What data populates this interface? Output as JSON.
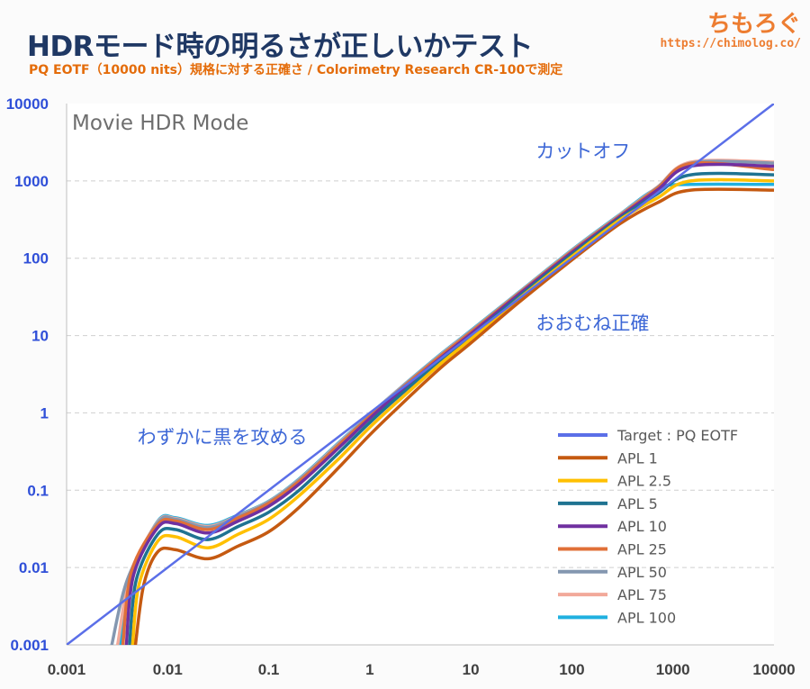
{
  "header": {
    "title": "HDRモード時の明るさが正しいかテスト",
    "subtitle": "PQ EOTF（10000 nits）規格に対する正確さ / Colorimetry Research CR-100で測定",
    "brand": "ちもろぐ",
    "brand_url": "https://chimolog.co/"
  },
  "chart_data": {
    "type": "line",
    "title": "Movie HDR Mode",
    "xscale": "log",
    "yscale": "log",
    "xlim": [
      0.001,
      10000
    ],
    "ylim": [
      0.001,
      10000
    ],
    "xticks": [
      "0.001",
      "0.01",
      "0.1",
      "1",
      "10",
      "100",
      "1000",
      "10000"
    ],
    "yticks": [
      "0.001",
      "0.01",
      "0.1",
      "1",
      "10",
      "100",
      "1000",
      "10000"
    ],
    "grid": "horizontal-dashed",
    "legend": "bottom-right",
    "annotations": [
      {
        "text": "カットオフ",
        "x": 100,
        "y": 2000
      },
      {
        "text": "おおむね正確",
        "x": 100,
        "y": 12
      },
      {
        "text": "わずかに黒を攻める",
        "x": 0.003,
        "y": 0.4
      }
    ],
    "series": [
      {
        "name": "Target : PQ EOTF",
        "color": "#5b6fe8",
        "points": [
          [
            0.001,
            0.001
          ],
          [
            10000,
            10000
          ]
        ]
      },
      {
        "name": "APL 1",
        "color": "#c55a11",
        "points": [
          [
            0.0048,
            0.001
          ],
          [
            0.0058,
            0.006
          ],
          [
            0.008,
            0.016
          ],
          [
            0.012,
            0.017
          ],
          [
            0.025,
            0.013
          ],
          [
            0.05,
            0.019
          ],
          [
            0.1,
            0.029
          ],
          [
            0.2,
            0.06
          ],
          [
            0.5,
            0.2
          ],
          [
            1,
            0.52
          ],
          [
            2,
            1.25
          ],
          [
            5,
            3.8
          ],
          [
            10,
            8
          ],
          [
            30,
            27
          ],
          [
            100,
            95
          ],
          [
            300,
            280
          ],
          [
            700,
            520
          ],
          [
            1500,
            760
          ],
          [
            10000,
            760
          ]
        ]
      },
      {
        "name": "APL 2.5",
        "color": "#ffc000",
        "points": [
          [
            0.0045,
            0.001
          ],
          [
            0.0052,
            0.006
          ],
          [
            0.008,
            0.022
          ],
          [
            0.012,
            0.025
          ],
          [
            0.025,
            0.018
          ],
          [
            0.05,
            0.027
          ],
          [
            0.1,
            0.042
          ],
          [
            0.2,
            0.085
          ],
          [
            0.5,
            0.26
          ],
          [
            1,
            0.65
          ],
          [
            2,
            1.5
          ],
          [
            5,
            4.3
          ],
          [
            10,
            9
          ],
          [
            30,
            30
          ],
          [
            100,
            105
          ],
          [
            300,
            315
          ],
          [
            700,
            600
          ],
          [
            1500,
            1000
          ],
          [
            10000,
            1000
          ]
        ]
      },
      {
        "name": "APL 5",
        "color": "#1f7391",
        "points": [
          [
            0.0042,
            0.001
          ],
          [
            0.0049,
            0.007
          ],
          [
            0.008,
            0.027
          ],
          [
            0.012,
            0.031
          ],
          [
            0.025,
            0.023
          ],
          [
            0.05,
            0.034
          ],
          [
            0.1,
            0.052
          ],
          [
            0.2,
            0.1
          ],
          [
            0.5,
            0.31
          ],
          [
            1,
            0.75
          ],
          [
            2,
            1.7
          ],
          [
            5,
            4.7
          ],
          [
            10,
            9.7
          ],
          [
            30,
            32
          ],
          [
            100,
            112
          ],
          [
            300,
            330
          ],
          [
            700,
            680
          ],
          [
            1500,
            1200
          ],
          [
            10000,
            1200
          ]
        ]
      },
      {
        "name": "APL 10",
        "color": "#7030a0",
        "points": [
          [
            0.0039,
            0.001
          ],
          [
            0.0046,
            0.008
          ],
          [
            0.008,
            0.033
          ],
          [
            0.012,
            0.037
          ],
          [
            0.025,
            0.028
          ],
          [
            0.05,
            0.04
          ],
          [
            0.1,
            0.062
          ],
          [
            0.2,
            0.12
          ],
          [
            0.5,
            0.36
          ],
          [
            1,
            0.85
          ],
          [
            2,
            1.9
          ],
          [
            5,
            5.1
          ],
          [
            10,
            10.5
          ],
          [
            30,
            34
          ],
          [
            100,
            118
          ],
          [
            300,
            345
          ],
          [
            700,
            760
          ],
          [
            1500,
            1550
          ],
          [
            10000,
            1550
          ]
        ]
      },
      {
        "name": "APL 25",
        "color": "#e07038",
        "points": [
          [
            0.0036,
            0.001
          ],
          [
            0.0044,
            0.009
          ],
          [
            0.008,
            0.036
          ],
          [
            0.012,
            0.04
          ],
          [
            0.025,
            0.031
          ],
          [
            0.05,
            0.044
          ],
          [
            0.1,
            0.068
          ],
          [
            0.2,
            0.13
          ],
          [
            0.5,
            0.39
          ],
          [
            1,
            0.9
          ],
          [
            2,
            2
          ],
          [
            5,
            5.4
          ],
          [
            10,
            11
          ],
          [
            30,
            35
          ],
          [
            100,
            122
          ],
          [
            300,
            355
          ],
          [
            700,
            800
          ],
          [
            1500,
            1680
          ],
          [
            10000,
            1400
          ]
        ]
      },
      {
        "name": "APL 50",
        "color": "#8497b0",
        "points": [
          [
            0.0028,
            0.001
          ],
          [
            0.004,
            0.007
          ],
          [
            0.008,
            0.038
          ],
          [
            0.012,
            0.042
          ],
          [
            0.025,
            0.033
          ],
          [
            0.05,
            0.046
          ],
          [
            0.1,
            0.07
          ],
          [
            0.2,
            0.135
          ],
          [
            0.5,
            0.4
          ],
          [
            1,
            0.93
          ],
          [
            2,
            2.05
          ],
          [
            5,
            5.5
          ],
          [
            10,
            11.2
          ],
          [
            30,
            35.5
          ],
          [
            100,
            124
          ],
          [
            300,
            360
          ],
          [
            700,
            820
          ],
          [
            1500,
            1700
          ],
          [
            10000,
            1700
          ]
        ]
      },
      {
        "name": "APL 75",
        "color": "#f2a99a",
        "points": [
          [
            0.0032,
            0.001
          ],
          [
            0.0043,
            0.008
          ],
          [
            0.008,
            0.039
          ],
          [
            0.012,
            0.043
          ],
          [
            0.025,
            0.034
          ],
          [
            0.05,
            0.047
          ],
          [
            0.1,
            0.071
          ],
          [
            0.2,
            0.137
          ],
          [
            0.5,
            0.41
          ],
          [
            1,
            0.94
          ],
          [
            2,
            2.08
          ],
          [
            5,
            5.6
          ],
          [
            10,
            11.4
          ],
          [
            30,
            36
          ],
          [
            100,
            126
          ],
          [
            300,
            365
          ],
          [
            700,
            830
          ],
          [
            1500,
            1750
          ],
          [
            10000,
            1750
          ]
        ]
      },
      {
        "name": "APL 100",
        "color": "#1fb0e0",
        "points": [
          [
            0.0034,
            0.001
          ],
          [
            0.0045,
            0.008
          ],
          [
            0.008,
            0.04
          ],
          [
            0.012,
            0.044
          ],
          [
            0.025,
            0.035
          ],
          [
            0.05,
            0.048
          ],
          [
            0.1,
            0.072
          ],
          [
            0.2,
            0.14
          ],
          [
            0.5,
            0.42
          ],
          [
            1,
            0.95
          ],
          [
            2,
            2.1
          ],
          [
            5,
            5.7
          ],
          [
            10,
            11.6
          ],
          [
            30,
            36.5
          ],
          [
            100,
            128
          ],
          [
            300,
            370
          ],
          [
            700,
            800
          ],
          [
            1500,
            900
          ],
          [
            10000,
            900
          ]
        ]
      }
    ]
  }
}
